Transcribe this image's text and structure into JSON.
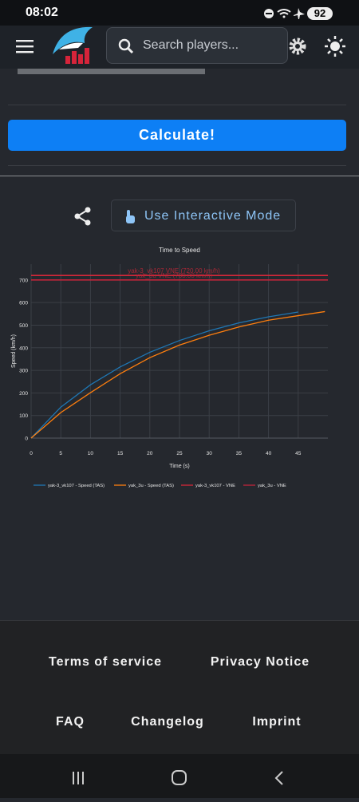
{
  "status_bar": {
    "time": "08:02",
    "battery": "92"
  },
  "header": {
    "search_placeholder": "Search players..."
  },
  "calculate_button": "Calculate!",
  "interactive_button": "Use Interactive Mode",
  "chart_data": {
    "type": "line",
    "title": "Time to Speed",
    "x_label": "Time (s)",
    "y_label": "Speed (km/h)",
    "xlim": [
      0,
      50
    ],
    "xticks": [
      0,
      5,
      10,
      15,
      20,
      25,
      30,
      35,
      40,
      45
    ],
    "ylim": [
      0,
      770
    ],
    "yticks": [
      0,
      100,
      200,
      300,
      400,
      500,
      600,
      700
    ],
    "grid": true,
    "series": [
      {
        "name": "yak-3_vk107 - Speed (TAS)",
        "color": "#1f77b4",
        "x": [
          0,
          5,
          10,
          15,
          20,
          25,
          30,
          35,
          40,
          45
        ],
        "values": [
          0,
          137,
          236,
          315,
          380,
          432,
          475,
          510,
          537,
          558
        ]
      },
      {
        "name": "yak_3u - Speed (TAS)",
        "color": "#ff7f0e",
        "x": [
          0,
          5,
          10,
          15,
          20,
          25,
          30,
          35,
          40,
          45,
          49.5
        ],
        "values": [
          0,
          113,
          201,
          285,
          356,
          412,
          455,
          492,
          522,
          542,
          560
        ]
      }
    ],
    "reference_lines": [
      {
        "name": "yak-3_vk107 - VNE",
        "color": "#d62739",
        "value": 720,
        "label": "yak-3_vk107 VNE (720.00 km/h)"
      },
      {
        "name": "yak_3u - VNE",
        "color": "#c0243a",
        "value": 700,
        "label": "yak_3u VNE (700.00 km/h)"
      }
    ]
  },
  "footer": {
    "links": [
      "Terms of service",
      "Privacy Notice",
      "FAQ",
      "Changelog",
      "Imprint"
    ]
  }
}
